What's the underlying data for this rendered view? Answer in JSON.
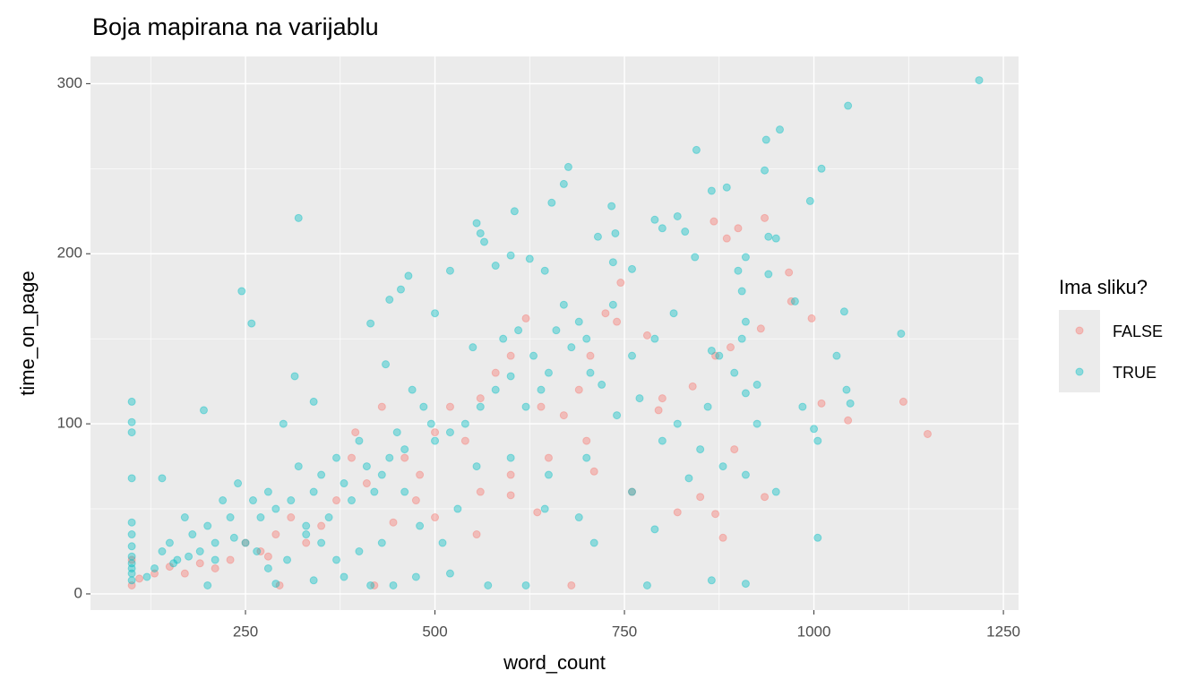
{
  "chart_data": {
    "type": "scatter",
    "title": "Boja mapirana na varijablu",
    "x_label": "word_count",
    "y_label": "time_on_page",
    "legend_title": "Ima sliku?",
    "legend": "right",
    "grid": true,
    "alpha": 0.4,
    "xlim": [
      45.5,
      1270
    ],
    "ylim": [
      -9.5,
      316
    ],
    "xticks": [
      250,
      500,
      750,
      1000,
      1250
    ],
    "yticks": [
      0,
      100,
      200,
      300
    ],
    "xminorticks": [
      125,
      375,
      625,
      875,
      1125
    ],
    "yminorticks": [
      50,
      150,
      250
    ],
    "series": [
      {
        "name": "FALSE",
        "color": "#F8766D",
        "x": [
          935,
          868,
          900,
          885,
          967,
          970,
          997,
          930,
          890,
          870,
          840,
          800,
          780,
          745,
          725,
          705,
          690,
          670,
          640,
          620,
          600,
          580,
          560,
          540,
          520,
          500,
          480,
          460,
          430,
          410,
          390,
          370,
          350,
          330,
          310,
          290,
          270,
          250,
          230,
          210,
          190,
          170,
          150,
          130,
          110,
          100,
          100,
          280,
          295,
          420,
          475,
          555,
          600,
          635,
          680,
          710,
          760,
          795,
          820,
          850,
          870,
          880,
          895,
          935,
          1010,
          1045,
          1118,
          1150,
          740,
          700,
          650,
          600,
          560,
          500,
          445,
          395
        ],
        "values": [
          221,
          219,
          215,
          209,
          189,
          172,
          162,
          156,
          145,
          140,
          122,
          115,
          152,
          183,
          165,
          140,
          120,
          105,
          110,
          162,
          140,
          130,
          115,
          90,
          110,
          95,
          70,
          80,
          110,
          65,
          80,
          55,
          40,
          30,
          45,
          35,
          25,
          30,
          20,
          15,
          18,
          12,
          16,
          12,
          9,
          5,
          20,
          22,
          5,
          5,
          55,
          35,
          58,
          48,
          5,
          72,
          60,
          108,
          48,
          57,
          47,
          33,
          85,
          57,
          112,
          102,
          113,
          94,
          160,
          90,
          80,
          70,
          60,
          45,
          42,
          95
        ]
      },
      {
        "name": "TRUE",
        "color": "#00BFC4",
        "x": [
          1218,
          1045,
          955,
          937,
          845,
          1010,
          935,
          676,
          670,
          865,
          885,
          995,
          654,
          320,
          733,
          605,
          555,
          560,
          565,
          738,
          715,
          790,
          820,
          800,
          830,
          940,
          950,
          910,
          600,
          580,
          625,
          645,
          520,
          760,
          735,
          843,
          900,
          940,
          905,
          455,
          465,
          245,
          440,
          258,
          975,
          1040,
          1115,
          1030,
          1000,
          1005,
          1005,
          1043,
          1048,
          985,
          910,
          905,
          895,
          865,
          875,
          815,
          790,
          760,
          735,
          700,
          705,
          680,
          670,
          650,
          640,
          630,
          620,
          600,
          580,
          560,
          540,
          520,
          500,
          495,
          485,
          470,
          460,
          450,
          440,
          430,
          420,
          410,
          400,
          390,
          380,
          370,
          360,
          350,
          340,
          330,
          320,
          310,
          300,
          290,
          280,
          270,
          260,
          250,
          240,
          230,
          220,
          210,
          200,
          190,
          180,
          170,
          160,
          150,
          140,
          130,
          120,
          100,
          100,
          100,
          100,
          100,
          100,
          100,
          100,
          100,
          100,
          100,
          100,
          195,
          315,
          340,
          415,
          435,
          500,
          550,
          590,
          610,
          660,
          690,
          720,
          770,
          820,
          850,
          860,
          880,
          910,
          950,
          865,
          910,
          780,
          620,
          570,
          520,
          475,
          445,
          415,
          380,
          340,
          290,
          200,
          710,
          690,
          650,
          600,
          555,
          530,
          510,
          480,
          460,
          430,
          400,
          370,
          350,
          330,
          305,
          280,
          265,
          235,
          210,
          175,
          155,
          140,
          645,
          700,
          740,
          760,
          800,
          790,
          835,
          910,
          925,
          925
        ],
        "values": [
          302,
          287,
          273,
          267,
          261,
          250,
          249,
          251,
          241,
          237,
          239,
          231,
          230,
          221,
          228,
          225,
          218,
          212,
          207,
          212,
          210,
          220,
          222,
          215,
          213,
          210,
          209,
          198,
          199,
          193,
          197,
          190,
          190,
          191,
          195,
          198,
          190,
          188,
          178,
          179,
          187,
          178,
          173,
          159,
          172,
          166,
          153,
          140,
          97,
          90,
          33,
          120,
          112,
          110,
          160,
          150,
          130,
          143,
          140,
          165,
          150,
          140,
          170,
          150,
          130,
          145,
          170,
          130,
          120,
          140,
          110,
          128,
          120,
          110,
          100,
          95,
          90,
          100,
          110,
          120,
          85,
          95,
          80,
          70,
          60,
          75,
          90,
          55,
          65,
          80,
          45,
          70,
          60,
          40,
          75,
          55,
          100,
          50,
          60,
          45,
          55,
          30,
          65,
          45,
          55,
          30,
          40,
          25,
          35,
          45,
          20,
          30,
          25,
          15,
          10,
          113,
          101,
          95,
          68,
          42,
          35,
          28,
          22,
          18,
          15,
          12,
          8,
          108,
          128,
          113,
          159,
          135,
          165,
          145,
          150,
          155,
          155,
          160,
          123,
          115,
          100,
          85,
          110,
          75,
          70,
          60,
          8,
          6,
          5,
          5,
          5,
          12,
          10,
          5,
          5,
          10,
          8,
          6,
          5,
          30,
          45,
          70,
          80,
          75,
          50,
          30,
          40,
          60,
          30,
          25,
          20,
          30,
          35,
          20,
          15,
          25,
          33,
          20,
          22,
          18,
          68,
          50,
          80,
          105,
          60,
          90,
          38,
          68,
          118,
          100,
          123
        ]
      }
    ]
  }
}
